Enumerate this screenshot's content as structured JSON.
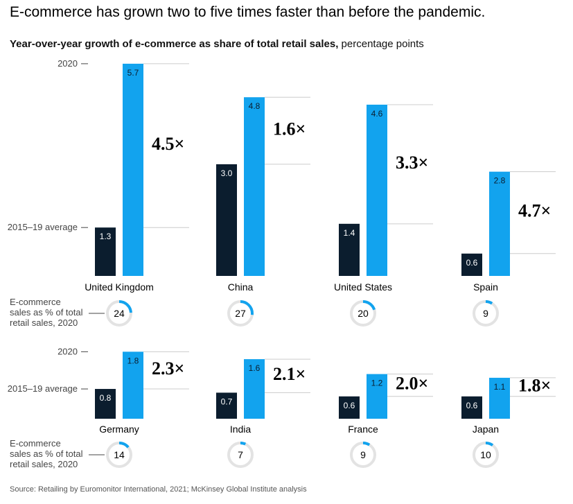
{
  "header": {
    "title": "E-commerce has grown two to five times faster than before the pandemic.",
    "subtitle_bold": "Year-over-year growth of e-commerce as share of total retail sales,",
    "subtitle_unit": "percentage points"
  },
  "labels": {
    "year_2020": "2020",
    "baseline": "2015–19 average",
    "share_label": [
      "E-commerce",
      "sales as % of total",
      "retail sales, 2020"
    ]
  },
  "colors": {
    "baseline_bar": "#0b1d2e",
    "growth_bar": "#12a3ee",
    "donut_track": "#e3e3e3",
    "donut_fill": "#12a3ee",
    "gridline": "#cccccc"
  },
  "chart_data": {
    "type": "bar",
    "ylabel": "percentage points",
    "series": [
      {
        "name": "2015–19 average",
        "values": [
          1.3,
          3.0,
          1.4,
          0.6,
          0.8,
          0.7,
          0.6,
          0.6
        ]
      },
      {
        "name": "2020",
        "values": [
          5.7,
          4.8,
          4.6,
          2.8,
          1.8,
          1.6,
          1.2,
          1.1
        ]
      }
    ],
    "categories": [
      "United Kingdom",
      "China",
      "United States",
      "Spain",
      "Germany",
      "India",
      "France",
      "Japan"
    ],
    "countries": [
      {
        "name": "United Kingdom",
        "baseline": 1.3,
        "y2020": 5.7,
        "multiple": "4.5×",
        "share": 24
      },
      {
        "name": "China",
        "baseline": 3.0,
        "y2020": 4.8,
        "multiple": "1.6×",
        "share": 27
      },
      {
        "name": "United States",
        "baseline": 1.4,
        "y2020": 4.6,
        "multiple": "3.3×",
        "share": 20
      },
      {
        "name": "Spain",
        "baseline": 0.6,
        "y2020": 2.8,
        "multiple": "4.7×",
        "share": 9
      },
      {
        "name": "Germany",
        "baseline": 0.8,
        "y2020": 1.8,
        "multiple": "2.3×",
        "share": 14
      },
      {
        "name": "India",
        "baseline": 0.7,
        "y2020": 1.6,
        "multiple": "2.1×",
        "share": 7
      },
      {
        "name": "France",
        "baseline": 0.6,
        "y2020": 1.2,
        "multiple": "2.0×",
        "share": 9
      },
      {
        "name": "Japan",
        "baseline": 0.6,
        "y2020": 1.1,
        "multiple": "1.8×",
        "share": 10
      }
    ]
  },
  "footer": {
    "source": "Source: Retailing by Euromonitor International, 2021; McKinsey Global Institute analysis"
  }
}
